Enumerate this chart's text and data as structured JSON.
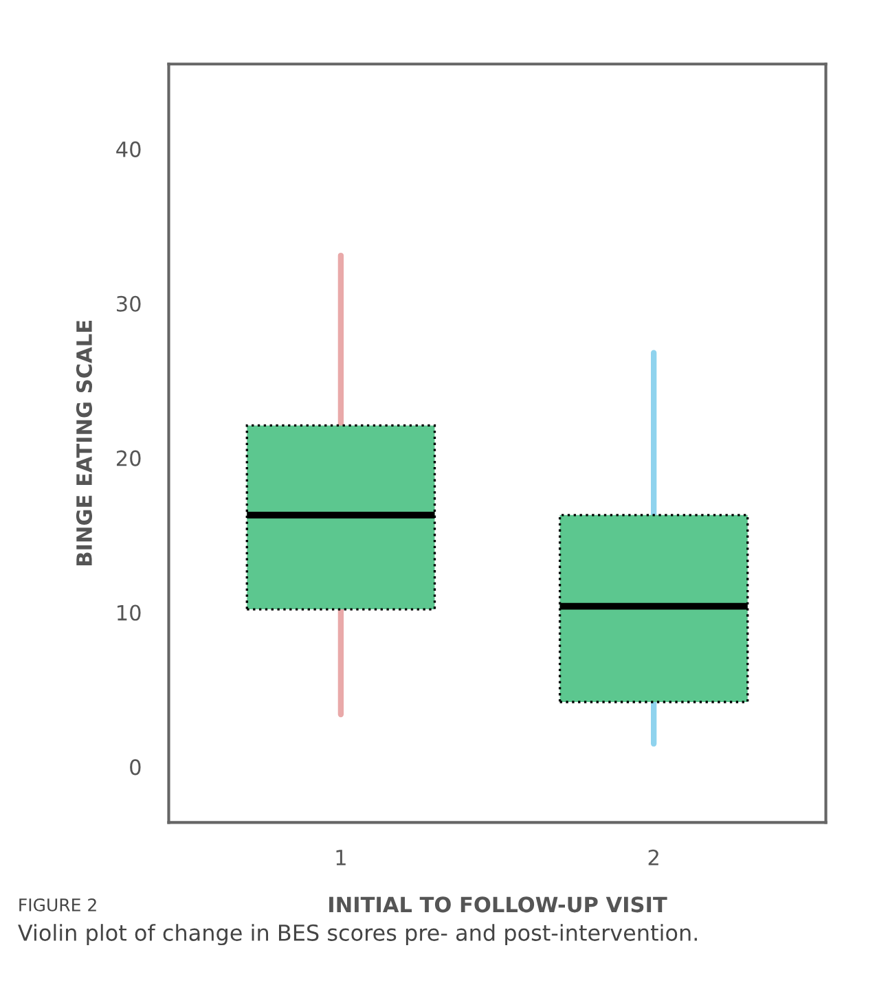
{
  "chart_data": {
    "type": "box",
    "xlabel": "INITIAL TO FOLLOW-UP VISIT",
    "ylabel": "BINGE EATING SCALE",
    "categories": [
      "1",
      "2"
    ],
    "boxes": [
      {
        "low": 3.4,
        "q1": 10.2,
        "median": 16.3,
        "q3": 22.1,
        "high": 33.1
      },
      {
        "low": 1.5,
        "q1": 4.2,
        "median": 10.4,
        "q3": 16.3,
        "high": 26.8
      }
    ],
    "colors": [
      "#5cc78f",
      "#5cc78f"
    ],
    "ylim": [
      -3.6,
      45.5
    ],
    "yticks": [
      0,
      10,
      20,
      30,
      40
    ],
    "grid": false,
    "legend": false,
    "annotations": [
      "FIGURE 2",
      "Violin plot of change in BES scores pre- and post-intervention."
    ]
  }
}
